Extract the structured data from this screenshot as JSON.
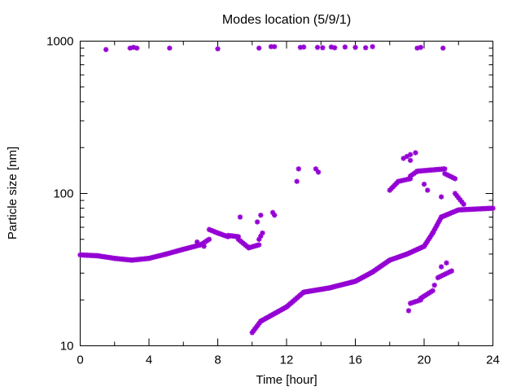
{
  "chart_data": {
    "type": "scatter",
    "title": "Modes location (5/9/1)",
    "xlabel": "Time [hour]",
    "ylabel": "Particle size [nm]",
    "xlim": [
      0,
      24
    ],
    "ylim": [
      10,
      1000
    ],
    "yscale": "log",
    "grid": false,
    "legend": "none",
    "xticks": [
      0,
      4,
      8,
      12,
      16,
      20,
      24
    ],
    "yticks": [
      10,
      100,
      1000
    ],
    "xtick_labels": [
      "0",
      "4",
      "8",
      "12",
      "16",
      "20",
      "24"
    ],
    "ytick_labels": [
      "10",
      "100",
      "1000"
    ],
    "marker": "asterisk",
    "series": [
      {
        "color": "#9400d3",
        "segments": [
          {
            "x0": 0.0,
            "x1": 1.0,
            "y0": 39.5,
            "y1": 39.0,
            "step": 0.083
          },
          {
            "x0": 1.0,
            "x1": 2.0,
            "y0": 39.0,
            "y1": 37.5,
            "step": 0.083
          },
          {
            "x0": 2.0,
            "x1": 3.0,
            "y0": 37.5,
            "y1": 36.5,
            "step": 0.083
          },
          {
            "x0": 3.0,
            "x1": 4.0,
            "y0": 36.5,
            "y1": 37.5,
            "step": 0.083
          },
          {
            "x0": 4.0,
            "x1": 5.0,
            "y0": 37.5,
            "y1": 40.0,
            "step": 0.083
          },
          {
            "x0": 5.0,
            "x1": 6.0,
            "y0": 40.0,
            "y1": 43.0,
            "step": 0.083
          },
          {
            "x0": 6.0,
            "x1": 7.0,
            "y0": 43.0,
            "y1": 46.0,
            "step": 0.083
          },
          {
            "x0": 7.0,
            "x1": 7.5,
            "y0": 46.0,
            "y1": 50.0,
            "step": 0.083
          },
          {
            "x0": 7.5,
            "x1": 8.0,
            "y0": 58.0,
            "y1": 55.0,
            "step": 0.083
          },
          {
            "x0": 8.0,
            "x1": 8.6,
            "y0": 55.0,
            "y1": 52.0,
            "step": 0.083
          },
          {
            "x0": 8.6,
            "x1": 9.2,
            "y0": 53.0,
            "y1": 52.0,
            "step": 0.083
          },
          {
            "x0": 9.2,
            "x1": 9.8,
            "y0": 50.0,
            "y1": 44.0,
            "step": 0.083
          },
          {
            "x0": 9.8,
            "x1": 10.4,
            "y0": 44.0,
            "y1": 46.0,
            "step": 0.083
          },
          {
            "x0": 10.4,
            "x1": 10.6,
            "y0": 50.0,
            "y1": 55.0,
            "step": 0.083
          },
          {
            "x0": 10.0,
            "x1": 10.5,
            "y0": 12.2,
            "y1": 14.5,
            "step": 0.07
          },
          {
            "x0": 10.5,
            "x1": 12.0,
            "y0": 14.5,
            "y1": 18.0,
            "step": 0.07
          },
          {
            "x0": 12.0,
            "x1": 13.0,
            "y0": 18.0,
            "y1": 22.5,
            "step": 0.07
          },
          {
            "x0": 13.0,
            "x1": 14.5,
            "y0": 22.5,
            "y1": 24.0,
            "step": 0.07
          },
          {
            "x0": 14.5,
            "x1": 16.0,
            "y0": 24.0,
            "y1": 26.5,
            "step": 0.07
          },
          {
            "x0": 16.0,
            "x1": 17.0,
            "y0": 26.5,
            "y1": 30.5,
            "step": 0.07
          },
          {
            "x0": 17.0,
            "x1": 18.0,
            "y0": 30.5,
            "y1": 36.5,
            "step": 0.07
          },
          {
            "x0": 18.0,
            "x1": 19.0,
            "y0": 36.5,
            "y1": 40.0,
            "step": 0.07
          },
          {
            "x0": 19.0,
            "x1": 20.0,
            "y0": 40.0,
            "y1": 45.0,
            "step": 0.07
          },
          {
            "x0": 20.0,
            "x1": 20.5,
            "y0": 45.0,
            "y1": 55.0,
            "step": 0.07
          },
          {
            "x0": 20.5,
            "x1": 21.0,
            "y0": 55.0,
            "y1": 70.0,
            "step": 0.07
          },
          {
            "x0": 21.0,
            "x1": 22.0,
            "y0": 70.0,
            "y1": 78.0,
            "step": 0.07
          },
          {
            "x0": 22.0,
            "x1": 24.0,
            "y0": 78.0,
            "y1": 80.0,
            "step": 0.083
          },
          {
            "x0": 18.0,
            "x1": 18.5,
            "y0": 105.0,
            "y1": 120.0,
            "step": 0.1
          },
          {
            "x0": 18.5,
            "x1": 19.2,
            "y0": 120.0,
            "y1": 125.0,
            "step": 0.1
          },
          {
            "x0": 19.2,
            "x1": 19.6,
            "y0": 130.0,
            "y1": 140.0,
            "step": 0.1
          },
          {
            "x0": 19.6,
            "x1": 21.2,
            "y0": 140.0,
            "y1": 145.0,
            "step": 0.083
          },
          {
            "x0": 21.2,
            "x1": 21.8,
            "y0": 135.0,
            "y1": 125.0,
            "step": 0.1
          },
          {
            "x0": 21.8,
            "x1": 22.3,
            "y0": 100.0,
            "y1": 85.0,
            "step": 0.1
          },
          {
            "x0": 19.2,
            "x1": 19.8,
            "y0": 19.0,
            "y1": 20.0,
            "step": 0.1
          },
          {
            "x0": 19.8,
            "x1": 20.5,
            "y0": 20.5,
            "y1": 23.0,
            "step": 0.1
          },
          {
            "x0": 20.8,
            "x1": 21.6,
            "y0": 28.0,
            "y1": 31.0,
            "step": 0.1
          }
        ],
        "points": [
          [
            1.5,
            880
          ],
          [
            2.9,
            900
          ],
          [
            3.1,
            910
          ],
          [
            3.3,
            900
          ],
          [
            5.2,
            900
          ],
          [
            8.0,
            890
          ],
          [
            10.4,
            900
          ],
          [
            11.1,
            920
          ],
          [
            11.3,
            920
          ],
          [
            12.8,
            910
          ],
          [
            13.0,
            915
          ],
          [
            13.8,
            910
          ],
          [
            14.1,
            905
          ],
          [
            14.6,
            915
          ],
          [
            14.8,
            905
          ],
          [
            15.4,
            915
          ],
          [
            16.0,
            910
          ],
          [
            16.6,
            905
          ],
          [
            17.0,
            920
          ],
          [
            19.6,
            900
          ],
          [
            19.8,
            910
          ],
          [
            21.1,
            900
          ],
          [
            12.6,
            120
          ],
          [
            12.7,
            145
          ],
          [
            13.7,
            145
          ],
          [
            13.85,
            138
          ],
          [
            9.3,
            70
          ],
          [
            10.3,
            65
          ],
          [
            10.5,
            72
          ],
          [
            11.2,
            75
          ],
          [
            11.3,
            72
          ],
          [
            18.8,
            170
          ],
          [
            19.0,
            175
          ],
          [
            19.2,
            180
          ],
          [
            19.5,
            185
          ],
          [
            19.2,
            165
          ],
          [
            20.0,
            115
          ],
          [
            20.2,
            105
          ],
          [
            21.0,
            95
          ],
          [
            19.1,
            17
          ],
          [
            20.6,
            25
          ],
          [
            21.0,
            33
          ],
          [
            21.3,
            35
          ],
          [
            6.8,
            48
          ],
          [
            7.2,
            45
          ]
        ]
      }
    ]
  }
}
